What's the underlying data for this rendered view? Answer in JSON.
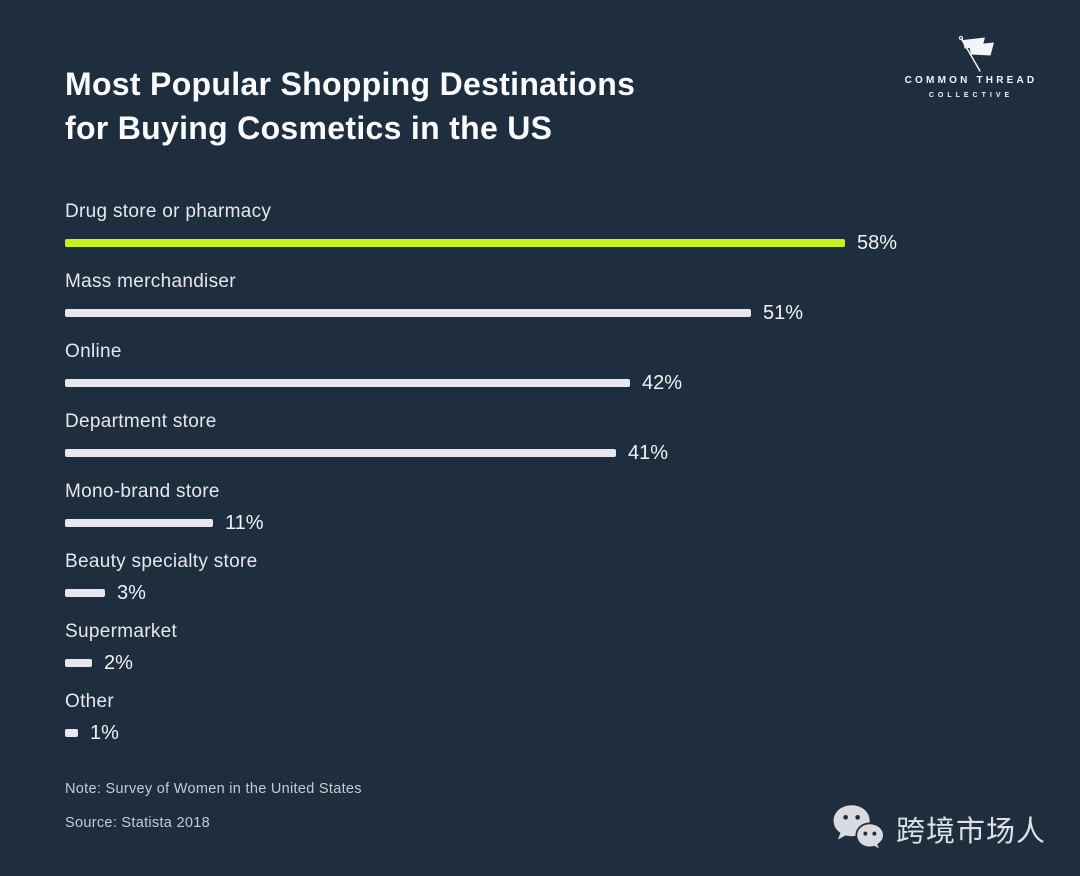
{
  "colors": {
    "background": "#1e2e3e",
    "highlight_bar": "#c8f21e",
    "bar": "#e9e7ed",
    "title_text": "#fbfbfd",
    "label_text": "#e8e6ec",
    "muted_text": "#c6cad2"
  },
  "header": {
    "title_lines": [
      "Most Popular Shopping Destinations",
      "for Buying Cosmetics in the US"
    ],
    "logo": {
      "icon": "flag-pin-icon",
      "name_line": "COMMON THREAD",
      "sub_line": "COLLECTIVE"
    }
  },
  "chart_data": {
    "type": "bar",
    "orientation": "horizontal",
    "title": "Most Popular Shopping Destinations for Buying Cosmetics in the US",
    "categories": [
      "Drug store or pharmacy",
      "Mass merchandiser",
      "Online",
      "Department store",
      "Mono-brand store",
      "Beauty specialty store",
      "Supermarket",
      "Other"
    ],
    "values": [
      58,
      51,
      42,
      41,
      11,
      3,
      2,
      1
    ],
    "value_labels": [
      "58%",
      "51%",
      "42%",
      "41%",
      "11%",
      "3%",
      "2%",
      "1%"
    ],
    "unit": "percent",
    "xlim": [
      0,
      70
    ],
    "grid": false,
    "legend": false,
    "highlight_index": 0,
    "highlight_color": "#c8f21e",
    "bar_color": "#e9e7ed"
  },
  "footer": {
    "note": "Note: Survey of Women in the United States",
    "source": "Source: Statista 2018"
  },
  "watermark": {
    "icon": "wechat-icon",
    "text": "跨境市场人"
  }
}
